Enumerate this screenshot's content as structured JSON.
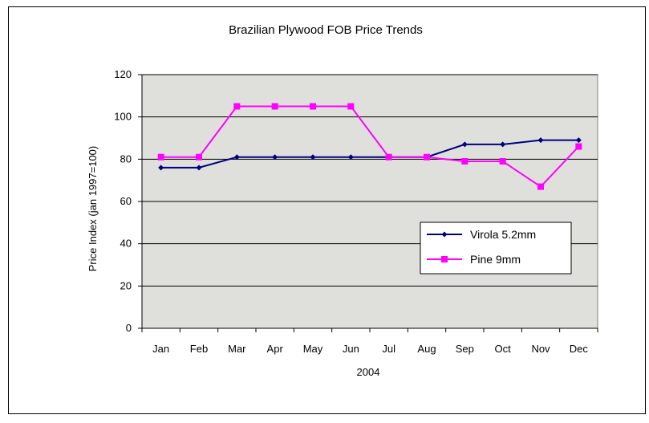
{
  "chart_data": {
    "type": "line",
    "title": "Brazilian Plywood FOB Price Trends",
    "xlabel": "2004",
    "ylabel": "Price Index (jan 1997=100)",
    "categories": [
      "Jan",
      "Feb",
      "Mar",
      "Apr",
      "May",
      "Jun",
      "Jul",
      "Aug",
      "Sep",
      "Oct",
      "Nov",
      "Dec"
    ],
    "ylim": [
      0,
      120
    ],
    "yticks": [
      0,
      20,
      40,
      60,
      80,
      100,
      120
    ],
    "grid": true,
    "legend_position": "right",
    "series": [
      {
        "name": "Virola 5.2mm",
        "color": "#000080",
        "marker": "diamond",
        "values": [
          76,
          76,
          81,
          81,
          81,
          81,
          81,
          81,
          87,
          87,
          89,
          89
        ]
      },
      {
        "name": "Pine 9mm",
        "color": "#FF00FF",
        "marker": "square",
        "values": [
          81,
          81,
          105,
          105,
          105,
          105,
          81,
          81,
          79,
          79,
          67,
          86
        ]
      }
    ],
    "colors": {
      "plot_background": "#DFE0DC",
      "gridline": "#000000"
    }
  }
}
